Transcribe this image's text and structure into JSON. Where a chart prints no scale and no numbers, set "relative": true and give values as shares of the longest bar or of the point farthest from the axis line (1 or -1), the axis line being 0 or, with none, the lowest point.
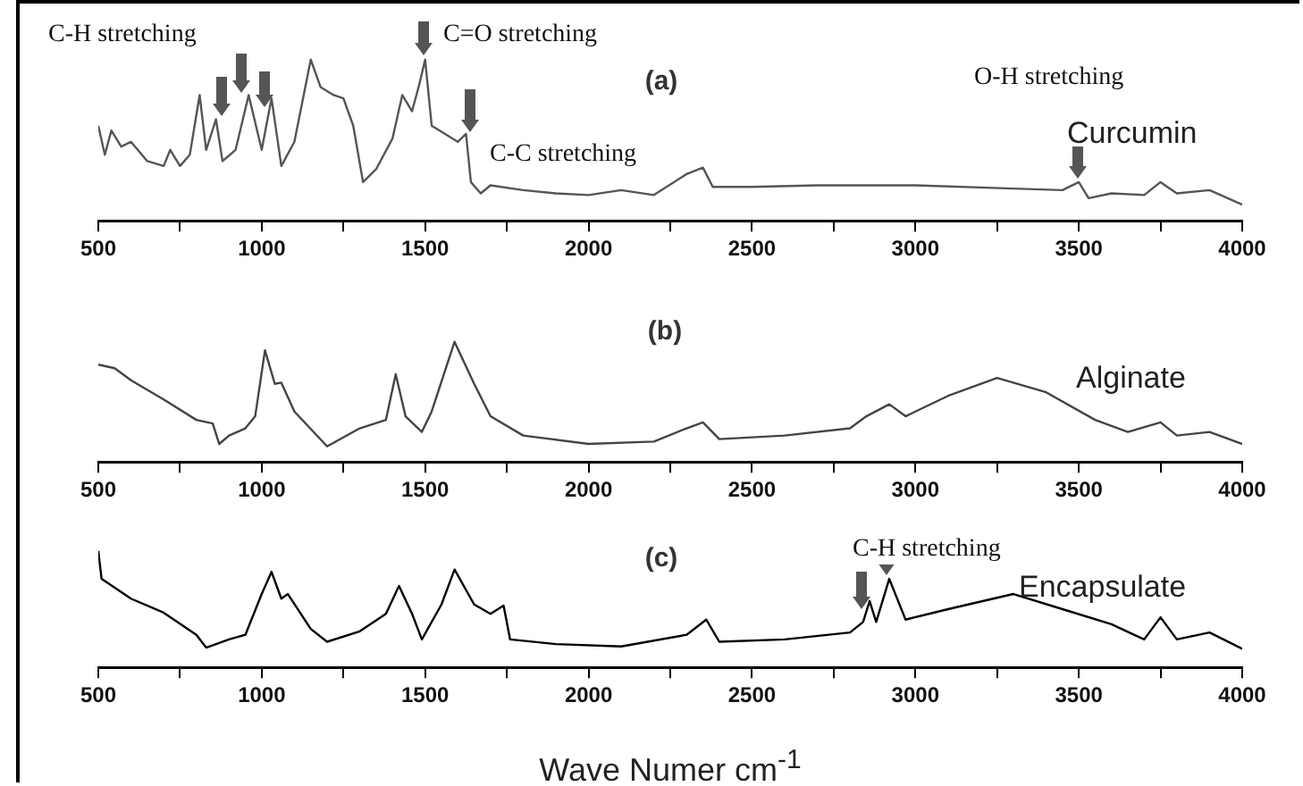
{
  "chart_data": [
    {
      "type": "line",
      "title": "(a)",
      "relative": true,
      "grid": false,
      "legend": false,
      "tick_labels": "x",
      "marker": "none",
      "line_style": "solid",
      "xlim": [
        500,
        4000
      ],
      "xticks": [
        500,
        {
          "value": 750,
          "label": null
        },
        1000,
        {
          "value": 1250,
          "label": null
        },
        1500,
        {
          "value": 1750,
          "label": null
        },
        2000,
        {
          "value": 2250,
          "label": null
        },
        2500,
        {
          "value": 2750,
          "label": null
        },
        3000,
        {
          "value": 3250,
          "label": null
        },
        3500,
        {
          "value": 3750,
          "label": null
        },
        4000
      ],
      "annotations": [
        "C-H stretching",
        "C=O stretching",
        "O-H stretching",
        "C-C stretching"
      ],
      "series": [
        {
          "name": "Curcumin",
          "color": "#555555",
          "x": [
            500,
            520,
            540,
            570,
            600,
            650,
            700,
            720,
            750,
            780,
            810,
            830,
            860,
            880,
            920,
            960,
            1000,
            1030,
            1060,
            1100,
            1150,
            1180,
            1220,
            1250,
            1280,
            1310,
            1350,
            1400,
            1430,
            1460,
            1480,
            1500,
            1520,
            1560,
            1600,
            1625,
            1640,
            1670,
            1700,
            1800,
            1900,
            2000,
            2100,
            2200,
            2300,
            2350,
            2380,
            2500,
            2700,
            3000,
            3300,
            3450,
            3500,
            3530,
            3600,
            3700,
            3750,
            3800,
            3900,
            4000
          ],
          "values": [
            0.59,
            0.41,
            0.56,
            0.46,
            0.49,
            0.37,
            0.34,
            0.44,
            0.34,
            0.41,
            0.78,
            0.44,
            0.63,
            0.37,
            0.44,
            0.78,
            0.44,
            0.76,
            0.34,
            0.49,
            1.0,
            0.83,
            0.78,
            0.76,
            0.59,
            0.24,
            0.32,
            0.51,
            0.78,
            0.68,
            0.83,
            1.0,
            0.59,
            0.54,
            0.49,
            0.54,
            0.24,
            0.17,
            0.22,
            0.19,
            0.17,
            0.16,
            0.19,
            0.16,
            0.29,
            0.33,
            0.21,
            0.21,
            0.22,
            0.22,
            0.2,
            0.19,
            0.24,
            0.14,
            0.17,
            0.16,
            0.24,
            0.17,
            0.19,
            0.1
          ]
        }
      ]
    },
    {
      "type": "line",
      "title": "(b)",
      "relative": true,
      "grid": false,
      "legend": false,
      "tick_labels": "x",
      "marker": "none",
      "line_style": "solid",
      "xlim": [
        500,
        4000
      ],
      "xticks": [
        500,
        {
          "value": 750,
          "label": null
        },
        1000,
        {
          "value": 1250,
          "label": null
        },
        1500,
        {
          "value": 1750,
          "label": null
        },
        2000,
        {
          "value": 2250,
          "label": null
        },
        2500,
        {
          "value": 2750,
          "label": null
        },
        3000,
        {
          "value": 3250,
          "label": null
        },
        3500,
        {
          "value": 3750,
          "label": null
        },
        4000
      ],
      "series": [
        {
          "name": "Alginate",
          "color": "#444444",
          "x": [
            500,
            550,
            600,
            700,
            800,
            850,
            870,
            900,
            950,
            980,
            1010,
            1040,
            1060,
            1100,
            1200,
            1300,
            1380,
            1410,
            1440,
            1490,
            1520,
            1590,
            1650,
            1700,
            1800,
            2000,
            2200,
            2300,
            2350,
            2400,
            2600,
            2800,
            2850,
            2920,
            2970,
            3100,
            3250,
            3400,
            3550,
            3650,
            3750,
            3800,
            3900,
            4000
          ],
          "values": [
            0.81,
            0.78,
            0.68,
            0.52,
            0.35,
            0.32,
            0.15,
            0.22,
            0.28,
            0.38,
            0.93,
            0.65,
            0.66,
            0.42,
            0.13,
            0.28,
            0.35,
            0.73,
            0.38,
            0.25,
            0.42,
            1.0,
            0.65,
            0.38,
            0.22,
            0.15,
            0.17,
            0.28,
            0.33,
            0.19,
            0.22,
            0.28,
            0.38,
            0.48,
            0.38,
            0.55,
            0.7,
            0.58,
            0.35,
            0.25,
            0.33,
            0.22,
            0.25,
            0.15
          ]
        }
      ]
    },
    {
      "type": "line",
      "title": "(c)",
      "xlabel": "Wave Numer cm$^{-1}$",
      "relative": true,
      "grid": false,
      "legend": false,
      "tick_labels": "x",
      "marker": "none",
      "line_style": "solid",
      "xlim": [
        500,
        4000
      ],
      "xticks": [
        500,
        {
          "value": 750,
          "label": null
        },
        1000,
        {
          "value": 1250,
          "label": null
        },
        1500,
        {
          "value": 1750,
          "label": null
        },
        2000,
        {
          "value": 2250,
          "label": null
        },
        2500,
        {
          "value": 2750,
          "label": null
        },
        3000,
        {
          "value": 3250,
          "label": null
        },
        3500,
        {
          "value": 3750,
          "label": null
        },
        4000
      ],
      "annotations": [
        "C-H stretching"
      ],
      "series": [
        {
          "name": "Encapsulate",
          "color": "#000000",
          "x": [
            500,
            510,
            600,
            700,
            800,
            830,
            900,
            950,
            1000,
            1030,
            1060,
            1080,
            1150,
            1200,
            1300,
            1380,
            1420,
            1460,
            1490,
            1550,
            1590,
            1650,
            1700,
            1740,
            1760,
            1900,
            2100,
            2300,
            2360,
            2400,
            2600,
            2800,
            2840,
            2860,
            2880,
            2920,
            2970,
            3100,
            3300,
            3450,
            3600,
            3700,
            3750,
            3800,
            3900,
            4000
          ],
          "values": [
            1.0,
            0.76,
            0.59,
            0.47,
            0.28,
            0.17,
            0.24,
            0.28,
            0.63,
            0.82,
            0.59,
            0.63,
            0.33,
            0.22,
            0.31,
            0.46,
            0.7,
            0.46,
            0.24,
            0.54,
            0.84,
            0.54,
            0.46,
            0.53,
            0.24,
            0.2,
            0.18,
            0.28,
            0.41,
            0.22,
            0.24,
            0.3,
            0.39,
            0.57,
            0.39,
            0.76,
            0.41,
            0.5,
            0.63,
            0.5,
            0.37,
            0.24,
            0.43,
            0.24,
            0.3,
            0.16
          ]
        }
      ]
    }
  ]
}
